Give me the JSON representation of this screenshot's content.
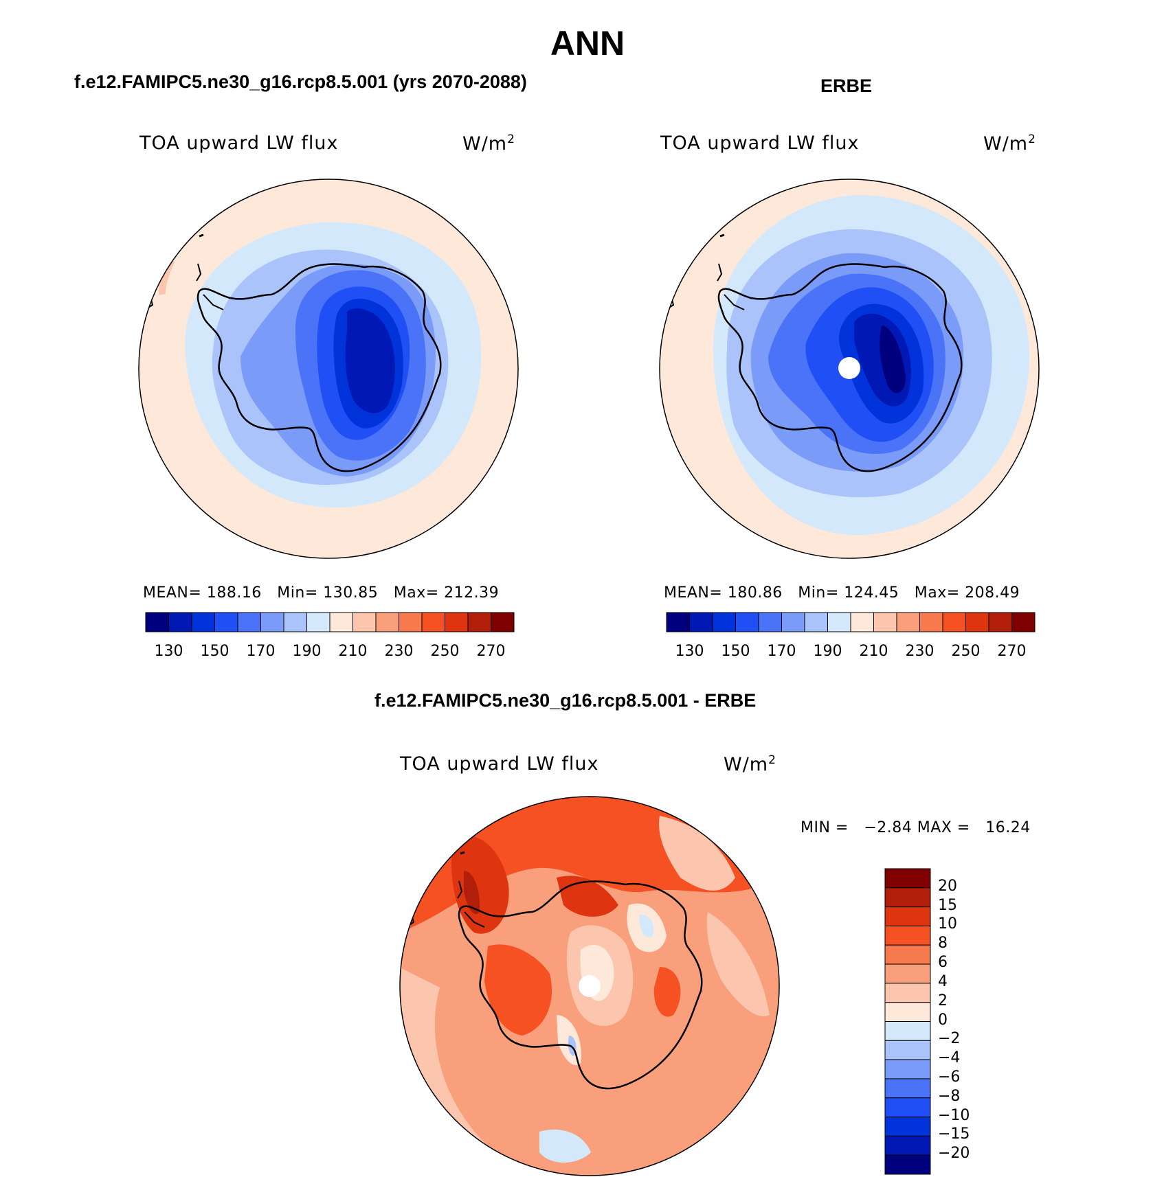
{
  "figure": {
    "main_title": "ANN"
  },
  "panels": [
    {
      "id": "model",
      "case_title": "f.e12.FAMIPC5.ne30_g16.rcp8.5.001 (yrs 2070-2088)",
      "variable_label": "TOA upward LW flux",
      "units": "W/m",
      "units_sup": "2",
      "stats": {
        "mean_label": "MEAN=",
        "mean": "188.16",
        "min_label": "Min=",
        "min": "130.85",
        "max_label": "Max=",
        "max": "212.39"
      }
    },
    {
      "id": "obs",
      "case_title": "ERBE",
      "variable_label": "TOA upward LW flux",
      "units": "W/m",
      "units_sup": "2",
      "stats": {
        "mean_label": "MEAN=",
        "mean": "180.86",
        "min_label": "Min=",
        "min": "124.45",
        "max_label": "Max=",
        "max": "208.49"
      }
    },
    {
      "id": "diff",
      "case_title": "f.e12.FAMIPC5.ne30_g16.rcp8.5.001 - ERBE",
      "variable_label": "TOA upward LW flux",
      "units": "W/m",
      "units_sup": "2",
      "stats": {
        "min_label": "MIN =",
        "min": "−2.84",
        "max_label": "MAX =",
        "max": "16.24"
      }
    }
  ],
  "colorbars": {
    "absolute": {
      "tick_labels": [
        "130",
        "150",
        "170",
        "190",
        "210",
        "230",
        "250",
        "270"
      ],
      "colors": [
        "#00007f",
        "#0019b4",
        "#0033d9",
        "#1f4ff5",
        "#4a73f7",
        "#7a9bf7",
        "#aac4fb",
        "#d4e8fb",
        "#fde8d9",
        "#fbc6ad",
        "#f99f7b",
        "#f77a4e",
        "#f55122",
        "#de3410",
        "#b11f0a",
        "#7f0000"
      ]
    },
    "difference": {
      "tick_labels": [
        "20",
        "15",
        "10",
        "8",
        "6",
        "4",
        "2",
        "0",
        "−2",
        "−4",
        "−6",
        "−8",
        "−10",
        "−15",
        "−20"
      ],
      "colors": [
        "#7f0000",
        "#b11f0a",
        "#de3410",
        "#f55122",
        "#f77a4e",
        "#f99f7b",
        "#fbc6ad",
        "#fde8d9",
        "#d4e8fb",
        "#aac4fb",
        "#7a9bf7",
        "#4a73f7",
        "#1f4ff5",
        "#0033d9",
        "#0019b4",
        "#00007f"
      ]
    }
  }
}
